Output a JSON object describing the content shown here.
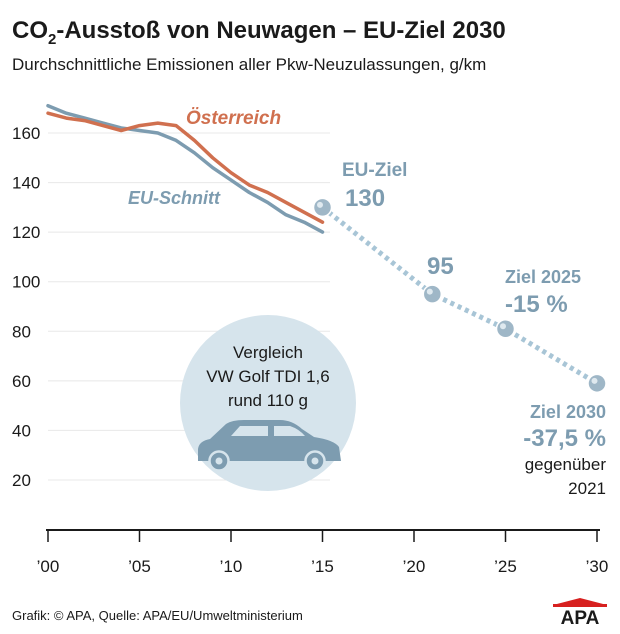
{
  "chart_data": {
    "type": "line",
    "title_main": "CO",
    "title_sub": "2",
    "title_rest": "-Ausstoß von Neuwagen – EU-Ziel 2030",
    "subtitle": "Durchschnittliche Emissionen aller Pkw-Neuzulassungen, g/km",
    "ylim": [
      0,
      175
    ],
    "xlim": [
      2000,
      2030
    ],
    "y_ticks": [
      20,
      40,
      60,
      80,
      100,
      120,
      140,
      160
    ],
    "x_ticks": [
      {
        "value": 2000,
        "label": "’00"
      },
      {
        "value": 2005,
        "label": "’05"
      },
      {
        "value": 2010,
        "label": "’10"
      },
      {
        "value": 2015,
        "label": "’15"
      },
      {
        "value": 2020,
        "label": "’20"
      },
      {
        "value": 2025,
        "label": "’25"
      },
      {
        "value": 2030,
        "label": "’30"
      }
    ],
    "series": [
      {
        "name": "Österreich",
        "color": "#d0704f",
        "x": [
          2000,
          2001,
          2002,
          2003,
          2004,
          2005,
          2006,
          2007,
          2008,
          2009,
          2010,
          2011,
          2012,
          2013,
          2014,
          2015
        ],
        "values": [
          168,
          166,
          165,
          163,
          161,
          163,
          164,
          163,
          157,
          150,
          144,
          139,
          136,
          132,
          128,
          124
        ]
      },
      {
        "name": "EU-Schnitt",
        "color": "#7d9cb0",
        "x": [
          2000,
          2001,
          2002,
          2003,
          2004,
          2005,
          2006,
          2007,
          2008,
          2009,
          2010,
          2011,
          2012,
          2013,
          2014,
          2015
        ],
        "values": [
          171,
          168,
          166,
          164,
          162,
          161,
          160,
          157,
          152,
          146,
          141,
          136,
          132,
          127,
          124,
          120
        ]
      },
      {
        "name": "EU-Ziel",
        "color": "#a8c5d6",
        "style": "dotted",
        "x": [
          2015,
          2021,
          2025,
          2030
        ],
        "values": [
          130,
          95,
          81,
          59
        ]
      }
    ],
    "annotations": {
      "austria_label": "Österreich",
      "eu_label": "EU-Schnitt",
      "eu_ziel_label": "EU-Ziel",
      "eu_ziel_value": "130",
      "target_2021_value": "95",
      "ziel_2025_label": "Ziel 2025",
      "ziel_2025_value": "-15 %",
      "ziel_2030_label": "Ziel 2030",
      "ziel_2030_value": "-37,5 %",
      "ziel_2030_note1": "gegenüber",
      "ziel_2030_note2": "2021"
    },
    "comparison": {
      "line1": "Vergleich",
      "line2": "VW Golf TDI 1,6",
      "line3": "rund 110 g"
    },
    "footer": {
      "source": "Grafik: © APA, Quelle: APA/EU/Umweltministerium",
      "logo": "APA"
    },
    "colors": {
      "austria": "#d0704f",
      "eu": "#7d9cb0",
      "target": "#a8c5d6",
      "bubble": "#d6e4ec",
      "car": "#7d9cb0",
      "logo_red": "#d7201f"
    }
  }
}
